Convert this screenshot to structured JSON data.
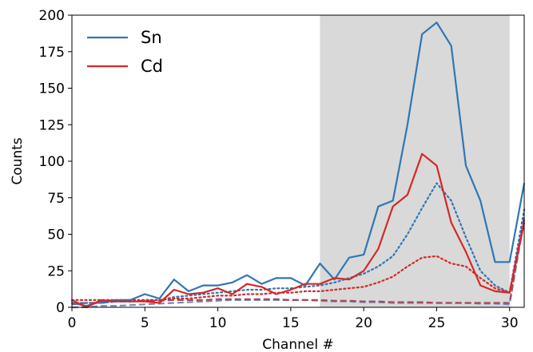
{
  "chart_data": {
    "type": "line",
    "title": "",
    "xlabel": "Channel #",
    "ylabel": "Counts",
    "xlim": [
      0,
      31
    ],
    "ylim": [
      0,
      200
    ],
    "xticks": [
      0,
      5,
      10,
      15,
      20,
      25,
      30
    ],
    "yticks": [
      0,
      25,
      50,
      75,
      100,
      125,
      150,
      175,
      200
    ],
    "grid": false,
    "legend_position": "top-left",
    "shaded_region": {
      "x_from": 17,
      "x_to": 30,
      "color": "#d9d9d9"
    },
    "series": [
      {
        "name": "Sn",
        "style": "solid",
        "color": "#2f76b4",
        "x": [
          0,
          1,
          2,
          3,
          4,
          5,
          6,
          7,
          8,
          9,
          10,
          11,
          12,
          13,
          14,
          15,
          16,
          17,
          18,
          19,
          20,
          21,
          22,
          23,
          24,
          25,
          26,
          27,
          28,
          29,
          30,
          31
        ],
        "values": [
          3,
          1,
          4,
          5,
          5,
          9,
          6,
          19,
          11,
          15,
          15,
          17,
          22,
          16,
          20,
          20,
          15,
          30,
          19,
          34,
          36,
          69,
          73,
          125,
          187,
          195,
          179,
          97,
          73,
          31,
          31,
          85
        ]
      },
      {
        "name": "Cd",
        "style": "solid",
        "color": "#d62728",
        "x": [
          0,
          1,
          2,
          3,
          4,
          5,
          6,
          7,
          8,
          9,
          10,
          11,
          12,
          13,
          14,
          15,
          16,
          17,
          18,
          19,
          20,
          21,
          22,
          23,
          24,
          25,
          26,
          27,
          28,
          29,
          30,
          31
        ],
        "values": [
          5,
          0,
          5,
          4,
          4,
          4,
          3,
          12,
          9,
          10,
          13,
          9,
          16,
          14,
          9,
          12,
          16,
          16,
          20,
          19,
          25,
          40,
          69,
          77,
          105,
          97,
          58,
          38,
          15,
          11,
          10,
          58
        ]
      },
      {
        "style": "dotted",
        "color": "#2f76b4",
        "x": [
          0,
          1,
          2,
          3,
          4,
          5,
          6,
          7,
          8,
          9,
          10,
          11,
          12,
          13,
          14,
          15,
          16,
          17,
          18,
          19,
          20,
          21,
          22,
          23,
          24,
          25,
          26,
          27,
          28,
          29,
          30,
          31
        ],
        "values": [
          3,
          3,
          3,
          4,
          4,
          5,
          5,
          7,
          8,
          9,
          10,
          11,
          12,
          12,
          13,
          13,
          14,
          15,
          17,
          20,
          23,
          28,
          35,
          50,
          68,
          85,
          73,
          48,
          25,
          15,
          10,
          67
        ]
      },
      {
        "style": "dotted",
        "color": "#d62728",
        "x": [
          0,
          1,
          2,
          3,
          4,
          5,
          6,
          7,
          8,
          9,
          10,
          11,
          12,
          13,
          14,
          15,
          16,
          17,
          18,
          19,
          20,
          21,
          22,
          23,
          24,
          25,
          26,
          27,
          28,
          29,
          30,
          31
        ],
        "values": [
          5,
          5,
          5,
          5,
          5,
          5,
          5,
          6,
          6,
          7,
          8,
          8,
          9,
          9,
          10,
          10,
          11,
          11,
          12,
          13,
          14,
          17,
          21,
          28,
          34,
          35,
          30,
          28,
          20,
          13,
          10,
          60
        ]
      },
      {
        "style": "dashed",
        "color": "#6f8fbf",
        "x": [
          0,
          1,
          2,
          3,
          4,
          5,
          6,
          7,
          8,
          9,
          10,
          11,
          12,
          13,
          14,
          15,
          16,
          17,
          18,
          19,
          20,
          21,
          22,
          23,
          24,
          25,
          26,
          27,
          28,
          29,
          30,
          31
        ],
        "values": [
          0,
          0,
          1,
          1,
          1.5,
          2,
          2.5,
          3,
          3.5,
          4,
          4.5,
          5,
          5,
          5,
          5,
          5,
          5,
          4.5,
          4,
          4,
          3.5,
          3.5,
          3,
          3,
          3,
          3,
          3,
          3,
          2.5,
          2.5,
          2,
          60
        ]
      },
      {
        "style": "dashed",
        "color": "#a8485a",
        "x": [
          0,
          1,
          2,
          3,
          4,
          5,
          6,
          7,
          8,
          9,
          10,
          11,
          12,
          13,
          14,
          15,
          16,
          17,
          18,
          19,
          20,
          21,
          22,
          23,
          24,
          25,
          26,
          27,
          28,
          29,
          30,
          31
        ],
        "values": [
          2,
          3,
          3,
          4,
          4,
          4.5,
          4.5,
          5,
          5,
          5,
          5.5,
          5.5,
          5.5,
          5.5,
          5.5,
          5,
          5,
          5,
          4.5,
          4.5,
          4,
          4,
          3.5,
          3.5,
          3.5,
          3,
          3,
          3,
          3,
          3,
          3,
          62
        ]
      }
    ]
  }
}
